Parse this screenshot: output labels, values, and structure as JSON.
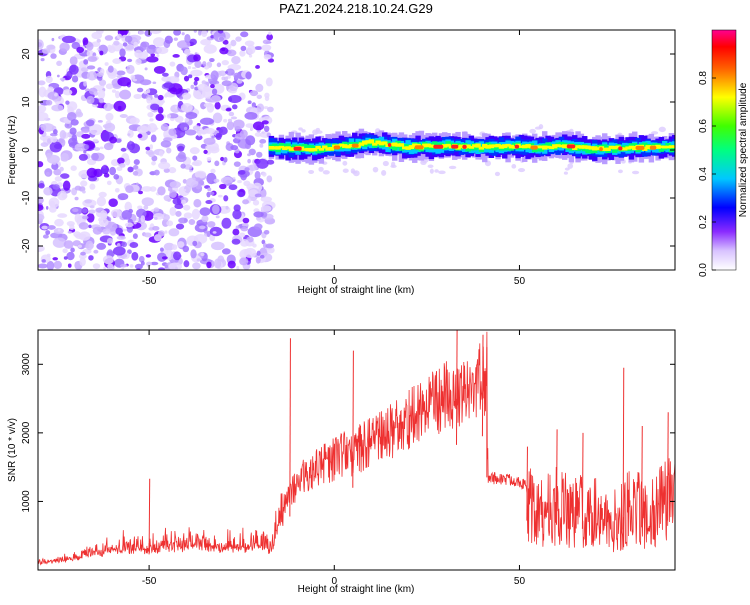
{
  "page": {
    "title": "PAZ1.2024.218.10.24.G29"
  },
  "chart_data": [
    {
      "type": "heatmap",
      "name": "spectrogram",
      "title": "PAZ1.2024.218.10.24.G29",
      "xlabel": "Height of straight line (km)",
      "ylabel": "Frequency (Hz)",
      "xlim": [
        -80,
        92
      ],
      "ylim": [
        -25,
        25
      ],
      "x_ticks": [
        -50,
        0,
        50
      ],
      "y_ticks": [
        -20,
        -10,
        0,
        10,
        20
      ],
      "grid": false,
      "noise_region_x": [
        -80,
        -17
      ],
      "signal_band": {
        "x_start": -17,
        "x_end": 92,
        "center_freq_points": [
          {
            "x": -16,
            "y": 0.5
          },
          {
            "x": -5,
            "y": 0.2
          },
          {
            "x": 5,
            "y": 1.0
          },
          {
            "x": 10,
            "y": 1.5
          },
          {
            "x": 20,
            "y": 0.6
          },
          {
            "x": 30,
            "y": 0.8
          },
          {
            "x": 40,
            "y": 0.6
          },
          {
            "x": 50,
            "y": 0.8
          },
          {
            "x": 55,
            "y": 0.4
          },
          {
            "x": 62,
            "y": 0.9
          },
          {
            "x": 70,
            "y": 0.2
          },
          {
            "x": 80,
            "y": 0.5
          },
          {
            "x": 92,
            "y": 0.6
          }
        ],
        "half_width_hz": 1.2
      },
      "colorbar": {
        "label": "Normalized spectral amplitude",
        "range": [
          0,
          1
        ],
        "ticks": [
          "0.0",
          "0.2",
          "0.4",
          "0.6",
          "0.8"
        ],
        "colormap": [
          "#ffffff",
          "#d8c3ff",
          "#6a00ff",
          "#0000ff",
          "#00ffff",
          "#00ff00",
          "#ffff00",
          "#ff8000",
          "#ff0000",
          "#ff00aa"
        ]
      }
    },
    {
      "type": "line",
      "name": "snr",
      "xlabel": "Height of straight line (km)",
      "ylabel": "SNR (10 * v/v)",
      "xlim": [
        -80,
        92
      ],
      "ylim": [
        0,
        3500
      ],
      "x_ticks": [
        -50,
        0,
        50
      ],
      "y_ticks": [
        1000,
        2000,
        3000
      ],
      "grid": false,
      "color": "#ee3030",
      "envelope": [
        {
          "x": -80,
          "y": 120
        },
        {
          "x": -70,
          "y": 200
        },
        {
          "x": -60,
          "y": 330
        },
        {
          "x": -50,
          "y": 380
        },
        {
          "x": -40,
          "y": 420
        },
        {
          "x": -30,
          "y": 380
        },
        {
          "x": -20,
          "y": 420
        },
        {
          "x": -17,
          "y": 350
        },
        {
          "x": -14,
          "y": 900
        },
        {
          "x": -12,
          "y": 1300
        },
        {
          "x": -10,
          "y": 1500
        },
        {
          "x": -5,
          "y": 1700
        },
        {
          "x": 0,
          "y": 1900
        },
        {
          "x": 5,
          "y": 2000
        },
        {
          "x": 10,
          "y": 2200
        },
        {
          "x": 15,
          "y": 2350
        },
        {
          "x": 20,
          "y": 2550
        },
        {
          "x": 25,
          "y": 2750
        },
        {
          "x": 30,
          "y": 2950
        },
        {
          "x": 35,
          "y": 3100
        },
        {
          "x": 40,
          "y": 3250
        },
        {
          "x": 41,
          "y": 3250
        },
        {
          "x": 41.5,
          "y": 1350
        },
        {
          "x": 50,
          "y": 1300
        },
        {
          "x": 52,
          "y": 1200
        },
        {
          "x": 55,
          "y": 900
        },
        {
          "x": 60,
          "y": 1100
        },
        {
          "x": 65,
          "y": 1000
        },
        {
          "x": 70,
          "y": 1000
        },
        {
          "x": 75,
          "y": 800
        },
        {
          "x": 80,
          "y": 1100
        },
        {
          "x": 85,
          "y": 1000
        },
        {
          "x": 90,
          "y": 1200
        },
        {
          "x": 92,
          "y": 1300
        }
      ],
      "spikes": [
        {
          "x": -50,
          "y": 1330
        },
        {
          "x": -12,
          "y": 3380
        },
        {
          "x": 5,
          "y": 3200
        },
        {
          "x": 33,
          "y": 3500
        },
        {
          "x": 40,
          "y": 3430
        },
        {
          "x": 52,
          "y": 1800
        },
        {
          "x": 60,
          "y": 2050
        },
        {
          "x": 67,
          "y": 2000
        },
        {
          "x": 78,
          "y": 2950
        },
        {
          "x": 83,
          "y": 2100
        },
        {
          "x": 90,
          "y": 2300
        }
      ]
    }
  ]
}
